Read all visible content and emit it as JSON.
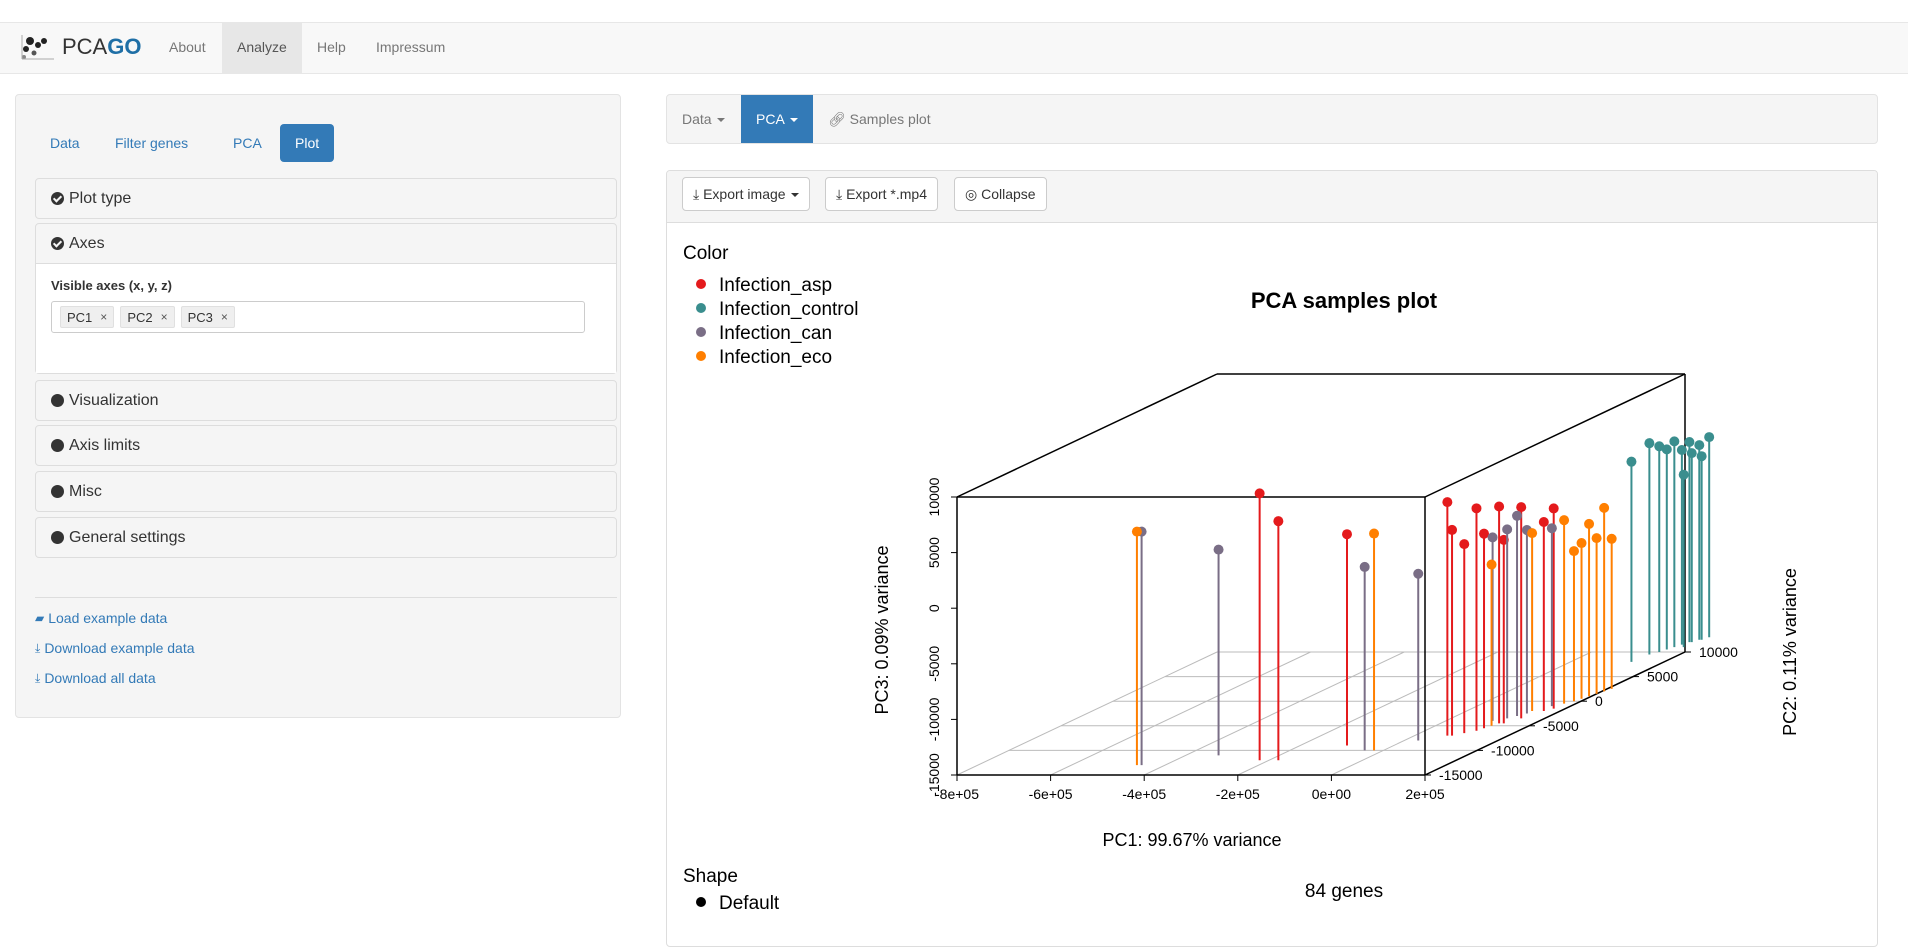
{
  "app": {
    "name_part1": "PCA",
    "name_part2": "GO"
  },
  "nav": [
    "About",
    "Analyze",
    "Help",
    "Impressum"
  ],
  "sidebar": {
    "tabs": [
      "Data",
      "Filter genes",
      "PCA",
      "Plot"
    ],
    "panels": {
      "plot_type": "Plot type",
      "axes": "Axes",
      "visible_axes_label": "Visible axes (x, y, z)",
      "tags": [
        "PC1",
        "PC2",
        "PC3"
      ],
      "visualization": "Visualization",
      "axis_limits": "Axis limits",
      "misc": "Misc",
      "general": "General settings"
    },
    "links": [
      "Load example data",
      "Download example data",
      "Download all data"
    ]
  },
  "topbar": {
    "items": [
      "Data",
      "PCA",
      "Samples plot"
    ]
  },
  "toolbar": {
    "export_image": "Export image",
    "export_mp4": "Export *.mp4",
    "collapse": "Collapse"
  },
  "plot": {
    "title": "PCA samples plot",
    "legend_color_title": "Color",
    "legend": [
      {
        "name": "Infection_asp",
        "color": "#e41a1c"
      },
      {
        "name": "Infection_control",
        "color": "#3a8e8e"
      },
      {
        "name": "Infection_can",
        "color": "#7a6e86"
      },
      {
        "name": "Infection_eco",
        "color": "#ff7f00"
      }
    ],
    "legend_shape_title": "Shape",
    "shape_default": "Default",
    "xlabel": "PC1: 99.67% variance",
    "ylabel": "PC3: 0.09% variance",
    "zlabel": "PC2: 0.11% variance",
    "x_ticks": [
      "-8e+05",
      "-6e+05",
      "-4e+05",
      "-2e+05",
      "0e+00",
      "2e+05"
    ],
    "z_ticks": [
      "-15000",
      "-10000",
      "-5000",
      "0",
      "5000",
      "10000"
    ],
    "depth_ticks": [
      "-15000",
      "-10000",
      "-5000",
      "0",
      "5000",
      "10000"
    ],
    "footer": "84 genes"
  },
  "chart_data": {
    "type": "scatter",
    "title": "PCA samples plot",
    "xlabel": "PC1: 99.67% variance",
    "ylabel": "PC3: 0.09% variance",
    "zlabel": "PC2: 0.11% variance",
    "xlim": [
      -800000,
      200000
    ],
    "ylim": [
      -15000,
      10000
    ],
    "zlim": [
      -15000,
      10000
    ],
    "series": [
      {
        "name": "Infection_asp",
        "points": [
          [
            -220000,
            9000,
            -12000
          ],
          [
            -180000,
            6500,
            -12000
          ],
          [
            -100000,
            4000,
            -9000
          ],
          [
            70000,
            6000,
            -7000
          ],
          [
            80000,
            3500,
            -7000
          ],
          [
            95000,
            2000,
            -6500
          ],
          [
            110000,
            5000,
            -6000
          ],
          [
            115000,
            2500,
            -5500
          ],
          [
            125000,
            4500,
            -4500
          ],
          [
            135000,
            1500,
            -4500
          ],
          [
            150000,
            4000,
            -3500
          ],
          [
            165000,
            2000,
            -2000
          ],
          [
            175000,
            3000,
            -1500
          ]
        ]
      },
      {
        "name": "Infection_control",
        "points": [
          [
            130000,
            3000,
            8000
          ],
          [
            135000,
            4000,
            9500
          ],
          [
            145000,
            3500,
            10000
          ],
          [
            150000,
            3000,
            10500
          ],
          [
            155000,
            3500,
            11000
          ],
          [
            160000,
            2500,
            11500
          ],
          [
            165000,
            3000,
            12000
          ],
          [
            170000,
            2000,
            12000
          ],
          [
            175000,
            2500,
            12500
          ],
          [
            180000,
            1500,
            12500
          ],
          [
            185000,
            3000,
            13000
          ],
          [
            175000,
            500,
            11000
          ]
        ]
      },
      {
        "name": "Infection_can",
        "points": [
          [
            -450000,
            6000,
            -13000
          ],
          [
            -330000,
            3500,
            -11000
          ],
          [
            -40000,
            1500,
            -10000
          ],
          [
            30000,
            0,
            -8000
          ],
          [
            100000,
            1500,
            -4000
          ],
          [
            120000,
            2000,
            -3500
          ],
          [
            130000,
            3000,
            -3000
          ],
          [
            140000,
            1500,
            -2500
          ],
          [
            160000,
            1000,
            -1000
          ]
        ]
      },
      {
        "name": "Infection_eco",
        "points": [
          [
            -460000,
            6000,
            -13000
          ],
          [
            -20000,
            4500,
            -10000
          ],
          [
            120000,
            -500,
            -5000
          ],
          [
            140000,
            1000,
            -2000
          ],
          [
            175000,
            1500,
            -500
          ],
          [
            185000,
            -1500,
            0
          ],
          [
            190000,
            -1000,
            500
          ],
          [
            195000,
            500,
            1000
          ],
          [
            200000,
            -1000,
            1500
          ],
          [
            205000,
            1500,
            2000
          ],
          [
            210000,
            -1500,
            2500
          ]
        ]
      }
    ]
  }
}
